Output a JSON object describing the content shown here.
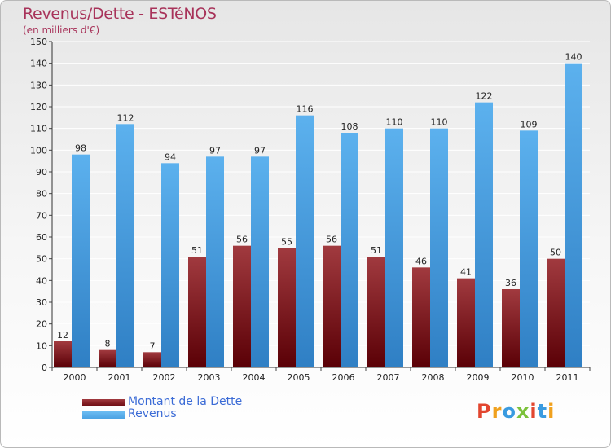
{
  "title": "Revenus/Dette - ESTéNOS",
  "subtitle": "(en milliers d'€)",
  "logo_text": "Proxiti",
  "colors": {
    "dette": "#6b0a10",
    "revenus": "#4aa2e3",
    "title": "#a8335a",
    "legend_text": "#3b6bd6"
  },
  "chart_data": {
    "type": "bar",
    "categories": [
      "2000",
      "2001",
      "2002",
      "2003",
      "2004",
      "2005",
      "2006",
      "2007",
      "2008",
      "2009",
      "2010",
      "2011"
    ],
    "series": [
      {
        "name": "Montant de la Dette",
        "values": [
          12,
          8,
          7,
          51,
          56,
          55,
          56,
          51,
          46,
          41,
          36,
          50
        ]
      },
      {
        "name": "Revenus",
        "values": [
          98,
          112,
          94,
          97,
          97,
          116,
          108,
          110,
          110,
          122,
          109,
          140
        ]
      }
    ],
    "ylim": [
      0,
      150
    ],
    "yticks": [
      0,
      10,
      20,
      30,
      40,
      50,
      60,
      70,
      80,
      90,
      100,
      110,
      120,
      130,
      140,
      150
    ],
    "grid": true,
    "legend_position": "bottom-left"
  }
}
